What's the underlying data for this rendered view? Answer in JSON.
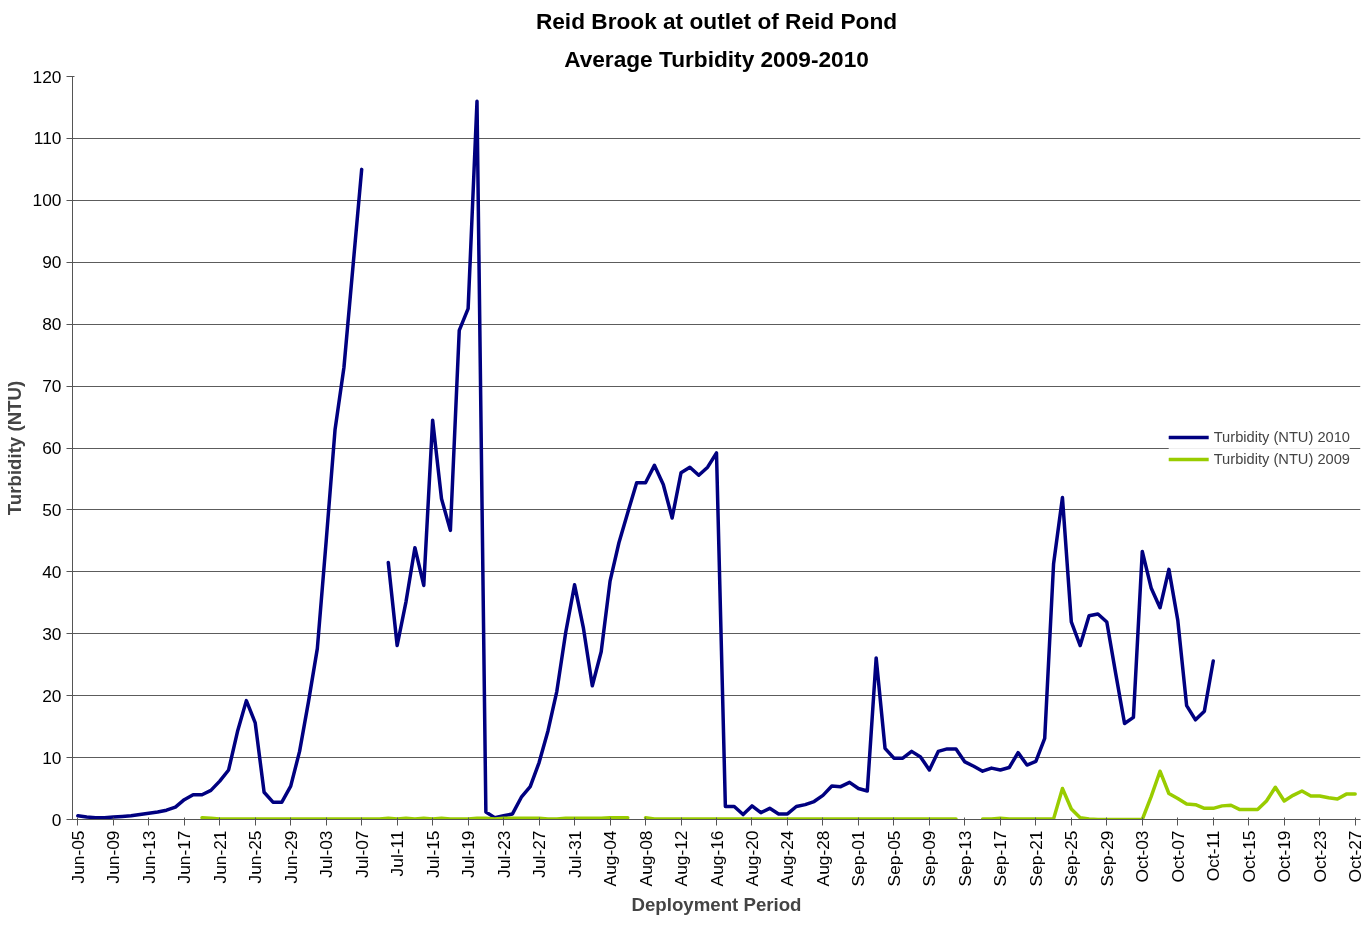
{
  "chart_data": {
    "type": "line",
    "title": "Reid Brook at outlet of Reid Pond",
    "subtitle": "Average Turbidity 2009-2010",
    "xlabel": "Deployment Period",
    "ylabel": "Turbidity (NTU)",
    "categories": [
      "Jun-05",
      null,
      null,
      null,
      "Jun-09",
      null,
      null,
      null,
      "Jun-13",
      null,
      null,
      null,
      "Jun-17",
      null,
      null,
      null,
      "Jun-21",
      null,
      null,
      null,
      "Jun-25",
      null,
      null,
      null,
      "Jun-29",
      null,
      null,
      null,
      "Jul-03",
      null,
      null,
      null,
      "Jul-07",
      null,
      null,
      null,
      "Jul-11",
      null,
      null,
      null,
      "Jul-15",
      null,
      null,
      null,
      "Jul-19",
      null,
      null,
      null,
      "Jul-23",
      null,
      null,
      null,
      "Jul-27",
      null,
      null,
      null,
      "Jul-31",
      null,
      null,
      null,
      "Aug-04",
      null,
      null,
      null,
      "Aug-08",
      null,
      null,
      null,
      "Aug-12",
      null,
      null,
      null,
      "Aug-16",
      null,
      null,
      null,
      "Aug-20",
      null,
      null,
      null,
      "Aug-24",
      null,
      null,
      null,
      "Aug-28",
      null,
      null,
      null,
      "Sep-01",
      null,
      null,
      null,
      "Sep-05",
      null,
      null,
      null,
      "Sep-09",
      null,
      null,
      null,
      "Sep-13",
      null,
      null,
      null,
      "Sep-17",
      null,
      null,
      null,
      "Sep-21",
      null,
      null,
      null,
      "Sep-25",
      null,
      null,
      null,
      "Sep-29",
      null,
      null,
      null,
      "Oct-03",
      null,
      null,
      null,
      "Oct-07",
      null,
      null,
      null,
      "Oct-11",
      null,
      null,
      null,
      "Oct-15",
      null,
      null,
      null,
      "Oct-19",
      null,
      null,
      null,
      "Oct-23",
      null,
      null,
      null,
      "Oct-27"
    ],
    "series": [
      {
        "name": "Turbidity (NTU) 2010",
        "color": "#000080",
        "values": [
          0.6,
          0.4,
          0.3,
          0.3,
          0.4,
          0.5,
          0.6,
          0.8,
          1.0,
          1.2,
          1.5,
          2.0,
          3.2,
          4.0,
          4.0,
          4.7,
          6.2,
          8.0,
          14.2,
          19.2,
          15.6,
          4.4,
          2.8,
          2.8,
          5.4,
          11.0,
          19,
          27.6,
          45,
          63,
          73,
          89,
          105,
          null,
          null,
          41.5,
          28.1,
          35.2,
          43.9,
          37.8,
          64.5,
          51.8,
          46.7,
          79,
          82.5,
          116,
          1.2,
          0.3,
          0.6,
          0.9,
          3.6,
          5.3,
          9.2,
          14.3,
          20.7,
          30.2,
          37.9,
          30.9,
          21.6,
          27.1,
          38.5,
          44.7,
          49.6,
          54.4,
          54.4,
          57.2,
          54.1,
          48.7,
          56,
          56.9,
          55.6,
          56.9,
          59.2,
          2.1,
          2.1,
          0.8,
          2.2,
          1.1,
          1.8,
          0.9,
          0.9,
          2.1,
          2.4,
          2.9,
          3.9,
          5.4,
          5.3,
          6.0,
          5.0,
          4.6,
          26.1,
          11.5,
          9.9,
          9.9,
          11.0,
          10.1,
          8.0,
          11.0,
          11.4,
          11.4,
          9.3,
          8.6,
          7.8,
          8.3,
          8.0,
          8.4,
          10.8,
          8.8,
          9.4,
          13.1,
          41.3,
          52.0,
          31.9,
          28.1,
          32.9,
          33.2,
          31.9,
          23.6,
          15.5,
          16.5,
          43.3,
          37.4,
          34.2,
          40.4,
          32.2,
          18.4,
          16.1,
          17.5,
          25.6,
          null,
          null,
          null,
          null,
          null,
          null,
          null,
          null,
          null,
          null,
          null,
          null,
          null,
          null,
          null,
          null
        ]
      },
      {
        "name": "Turbidity (NTU) 2009",
        "color": "#99cc00",
        "values": [
          null,
          null,
          null,
          null,
          null,
          null,
          null,
          null,
          null,
          null,
          null,
          null,
          null,
          null,
          0.3,
          0.2,
          0.1,
          0.1,
          0.1,
          0.1,
          0.1,
          0.1,
          0.1,
          0.1,
          0.1,
          0.1,
          0.1,
          0.1,
          0.1,
          0.1,
          0.1,
          0.1,
          0.1,
          0.1,
          0.1,
          0.2,
          0.1,
          0.2,
          0.1,
          0.2,
          0.1,
          0.2,
          0.1,
          0.1,
          0.1,
          0.2,
          0.2,
          0.1,
          0.2,
          0.2,
          0.2,
          0.2,
          0.2,
          0.1,
          0.1,
          0.2,
          0.2,
          0.2,
          0.2,
          0.2,
          0.3,
          0.3,
          0.3,
          null,
          0.3,
          0.1,
          0.1,
          0.1,
          0.1,
          0.1,
          0.1,
          0.1,
          0.1,
          0.1,
          0.1,
          0.1,
          0.1,
          0.1,
          0.1,
          0.1,
          0.1,
          0.1,
          0.1,
          0.1,
          0.1,
          0.1,
          0.1,
          0.1,
          0.1,
          0.1,
          0.1,
          0.1,
          0.1,
          0.1,
          0.1,
          0.1,
          0.1,
          0.1,
          0.1,
          0.1,
          null,
          null,
          0.1,
          0.1,
          0.2,
          0.1,
          0.1,
          0.1,
          0.1,
          0.1,
          0.1,
          5.0,
          1.7,
          0.3,
          0.1,
          0,
          0,
          0,
          0,
          0,
          0,
          3.7,
          7.8,
          4.2,
          3.4,
          2.5,
          2.4,
          1.8,
          1.8,
          2.2,
          2.3,
          1.6,
          1.6,
          1.6,
          3.0,
          5.2,
          3.0,
          3.9,
          4.6,
          3.8,
          3.8,
          3.5,
          3.3,
          4.1,
          4.1
        ]
      }
    ],
    "ylim": [
      0,
      120
    ],
    "yticks": [
      0,
      10,
      20,
      30,
      40,
      50,
      60,
      70,
      80,
      90,
      100,
      110,
      120
    ],
    "grid": "y",
    "legend": "right",
    "marker": "none",
    "line_style": "solid"
  }
}
